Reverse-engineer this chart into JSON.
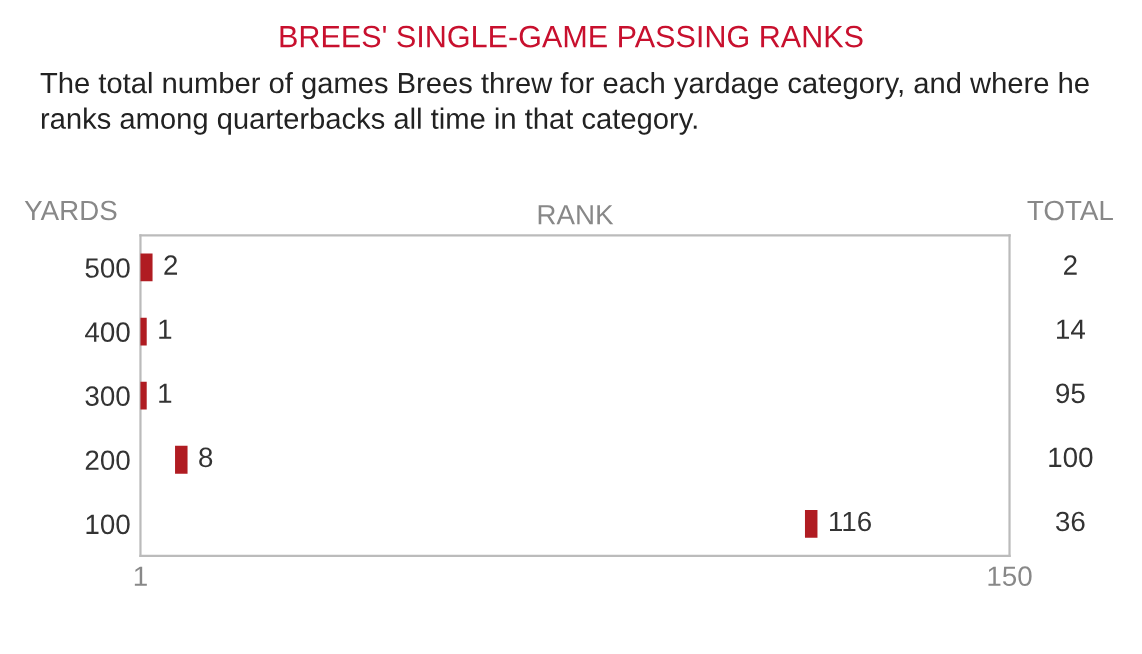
{
  "chart_data": {
    "type": "scatter",
    "orientation": "horizontal",
    "title": "BREES' SINGLE-GAME PASSING RANKS",
    "subtitle": "The total number of games Brees threw for each yardage category, and where he ranks among quarterbacks all time in that category.",
    "xlabel": "RANK",
    "ylabel": "YARDS",
    "y2label": "TOTAL",
    "categories": [
      "500",
      "400",
      "300",
      "200",
      "100"
    ],
    "values": [
      2,
      1,
      1,
      8,
      116
    ],
    "color": "#b01c22",
    "xlim": [
      1,
      150
    ],
    "xticks": [
      1,
      150
    ],
    "data_labels": true,
    "grid": false,
    "legend": false,
    "annotations": [
      "2",
      "14",
      "95",
      "100",
      "36"
    ]
  }
}
